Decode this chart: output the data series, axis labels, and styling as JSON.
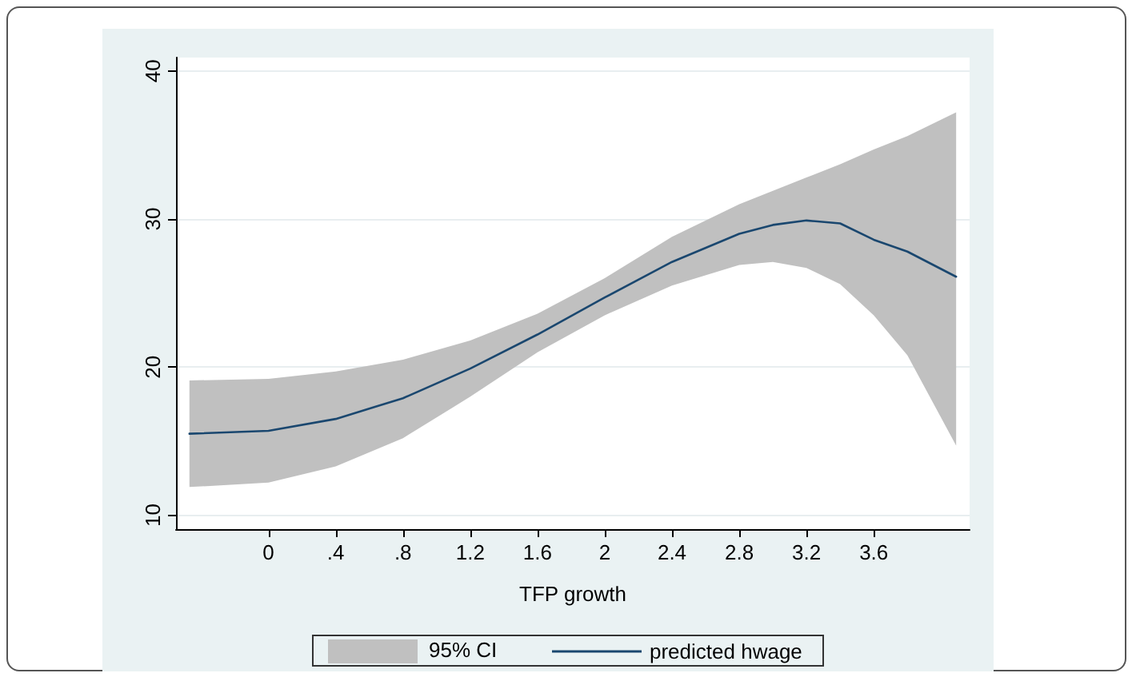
{
  "chart_data": {
    "type": "line",
    "xlabel": "TFP growth",
    "x": [
      -0.47,
      0,
      0.4,
      0.8,
      1.2,
      1.6,
      2.0,
      2.4,
      2.8,
      3.0,
      3.2,
      3.4,
      3.6,
      3.8,
      4.09
    ],
    "series": [
      {
        "name": "predicted hwage",
        "color": "#1a476f",
        "values": [
          15.5,
          15.7,
          16.5,
          17.9,
          19.9,
          22.2,
          24.7,
          27.1,
          29.0,
          29.6,
          29.9,
          29.7,
          28.6,
          27.8,
          26.1
        ],
        "lower": [
          11.9,
          12.2,
          13.3,
          15.2,
          18.0,
          21.0,
          23.5,
          25.5,
          26.9,
          27.1,
          26.7,
          25.6,
          23.5,
          20.8,
          14.7
        ],
        "upper": [
          19.1,
          19.2,
          19.7,
          20.5,
          21.8,
          23.6,
          26.0,
          28.8,
          31.0,
          31.9,
          32.8,
          33.7,
          34.7,
          35.6,
          37.2
        ]
      }
    ],
    "annotations": [
      "95% CI"
    ],
    "xlim": [
      -0.55,
      4.17
    ],
    "ylim": [
      9.06,
      40.9
    ],
    "xticks": [
      0,
      {
        "value": 0.4,
        "label": ".4"
      },
      {
        "value": 0.8,
        "label": ".8"
      },
      1.2,
      1.6,
      2,
      2.4,
      2.8,
      3.2,
      3.6
    ],
    "yticks": [
      10,
      20,
      30,
      40
    ],
    "grid": "y",
    "legend": "bottom",
    "marker": "none",
    "line_style": "solid"
  }
}
